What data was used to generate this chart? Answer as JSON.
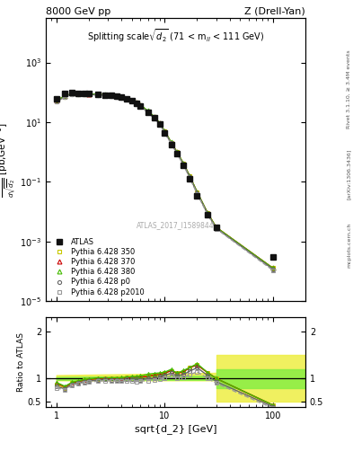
{
  "title_left": "8000 GeV pp",
  "title_right": "Z (Drell-Yan)",
  "panel_title": "Splitting scale $\\sqrt{\\overline{d_2}}$ (71 < m$_{ll}$ < 111 GeV)",
  "watermark": "ATLAS_2017_I1589844",
  "xlim": [
    0.8,
    200
  ],
  "ylim_main": [
    1e-05,
    30000.0
  ],
  "ylim_ratio": [
    0.39,
    2.3
  ],
  "atlas_x": [
    1.0,
    1.2,
    1.4,
    1.6,
    1.8,
    2.0,
    2.4,
    2.8,
    3.2,
    3.6,
    4.0,
    4.5,
    5.0,
    5.5,
    6.0,
    7.0,
    8.0,
    9.0,
    10.0,
    11.5,
    13.0,
    15.0,
    17.0,
    20.0,
    25.0,
    30.0,
    100.0
  ],
  "atlas_y": [
    60,
    90,
    100,
    95,
    92,
    90,
    85,
    82,
    78,
    74,
    68,
    60,
    52,
    44,
    36,
    22,
    14,
    8.5,
    4.5,
    1.8,
    0.9,
    0.35,
    0.13,
    0.035,
    0.008,
    0.003,
    0.0003
  ],
  "py350_x": [
    1.0,
    1.2,
    1.4,
    1.6,
    1.8,
    2.0,
    2.4,
    2.8,
    3.2,
    3.6,
    4.0,
    4.5,
    5.0,
    5.5,
    6.0,
    7.0,
    8.0,
    9.0,
    10.0,
    11.5,
    13.0,
    15.0,
    17.0,
    20.0,
    25.0,
    30.0,
    100.0
  ],
  "py350_y": [
    52,
    72,
    90,
    88,
    88,
    87,
    84,
    82,
    78,
    74,
    68,
    61,
    53,
    45,
    37,
    23,
    15,
    9.2,
    5.0,
    2.1,
    1.0,
    0.4,
    0.16,
    0.045,
    0.009,
    0.003,
    0.00013
  ],
  "py370_x": [
    1.0,
    1.2,
    1.4,
    1.6,
    1.8,
    2.0,
    2.4,
    2.8,
    3.2,
    3.6,
    4.0,
    4.5,
    5.0,
    5.5,
    6.0,
    7.0,
    8.0,
    9.0,
    10.0,
    11.5,
    13.0,
    15.0,
    17.0,
    20.0,
    25.0,
    30.0,
    100.0
  ],
  "py370_y": [
    54,
    74,
    91,
    89,
    89,
    88,
    85,
    82,
    78,
    74,
    68,
    61,
    53,
    45,
    37,
    23,
    15,
    9.2,
    5.0,
    2.1,
    1.0,
    0.4,
    0.16,
    0.045,
    0.009,
    0.003,
    0.00013
  ],
  "py380_x": [
    1.0,
    1.2,
    1.4,
    1.6,
    1.8,
    2.0,
    2.4,
    2.8,
    3.2,
    3.6,
    4.0,
    4.5,
    5.0,
    5.5,
    6.0,
    7.0,
    8.0,
    9.0,
    10.0,
    11.5,
    13.0,
    15.0,
    17.0,
    20.0,
    25.0,
    30.0,
    100.0
  ],
  "py380_y": [
    55,
    75,
    92,
    90,
    90,
    89,
    86,
    83,
    79,
    75,
    69,
    62,
    54,
    46,
    38,
    24,
    15.5,
    9.5,
    5.1,
    2.15,
    1.0,
    0.41,
    0.16,
    0.046,
    0.009,
    0.003,
    0.00013
  ],
  "pyp0_x": [
    1.0,
    1.2,
    1.4,
    1.6,
    1.8,
    2.0,
    2.4,
    2.8,
    3.2,
    3.6,
    4.0,
    4.5,
    5.0,
    5.5,
    6.0,
    7.0,
    8.0,
    9.0,
    10.0,
    11.5,
    13.0,
    15.0,
    17.0,
    20.0,
    25.0,
    30.0,
    100.0
  ],
  "pyp0_y": [
    50,
    70,
    88,
    86,
    86,
    85,
    82,
    80,
    76,
    72,
    66,
    59,
    51,
    43,
    35,
    22,
    14,
    8.8,
    4.8,
    2.0,
    0.95,
    0.38,
    0.15,
    0.043,
    0.0085,
    0.0028,
    0.00012
  ],
  "pyp2010_x": [
    1.0,
    1.2,
    1.4,
    1.6,
    1.8,
    2.0,
    2.4,
    2.8,
    3.2,
    3.6,
    4.0,
    4.5,
    5.0,
    5.5,
    6.0,
    7.0,
    8.0,
    9.0,
    10.0,
    11.5,
    13.0,
    15.0,
    17.0,
    20.0,
    25.0,
    30.0,
    100.0
  ],
  "pyp2010_y": [
    48,
    68,
    86,
    84,
    84,
    83,
    80,
    78,
    74,
    70,
    64,
    57,
    49,
    41,
    34,
    21,
    13.5,
    8.3,
    4.5,
    1.9,
    0.9,
    0.36,
    0.14,
    0.04,
    0.008,
    0.0027,
    0.00011
  ],
  "ratio_x": [
    1.0,
    1.2,
    1.4,
    1.6,
    1.8,
    2.0,
    2.4,
    2.8,
    3.2,
    3.6,
    4.0,
    4.5,
    5.0,
    5.5,
    6.0,
    7.0,
    8.0,
    9.0,
    10.0,
    11.5,
    13.0,
    15.0,
    17.0,
    20.0,
    25.0,
    30.0,
    100.0
  ],
  "ratio_py350_y": [
    0.87,
    0.8,
    0.9,
    0.926,
    0.957,
    0.967,
    0.988,
    1.0,
    1.0,
    1.0,
    1.0,
    1.017,
    1.019,
    1.023,
    1.028,
    1.045,
    1.071,
    1.082,
    1.111,
    1.167,
    1.111,
    1.143,
    1.231,
    1.286,
    1.125,
    1.0,
    0.433
  ],
  "ratio_py370_y": [
    0.9,
    0.822,
    0.91,
    0.937,
    0.967,
    0.978,
    1.0,
    1.0,
    1.0,
    1.0,
    1.0,
    1.017,
    1.019,
    1.023,
    1.028,
    1.045,
    1.071,
    1.082,
    1.111,
    1.167,
    1.111,
    1.143,
    1.231,
    1.286,
    1.125,
    1.0,
    0.433
  ],
  "ratio_py380_y": [
    0.917,
    0.833,
    0.92,
    0.947,
    0.978,
    0.989,
    1.012,
    1.012,
    1.013,
    1.014,
    1.015,
    1.033,
    1.038,
    1.045,
    1.056,
    1.091,
    1.107,
    1.118,
    1.133,
    1.194,
    1.111,
    1.171,
    1.231,
    1.314,
    1.125,
    1.0,
    0.433
  ],
  "ratio_pyp0_y": [
    0.833,
    0.778,
    0.88,
    0.905,
    0.935,
    0.944,
    0.965,
    0.976,
    0.974,
    0.973,
    0.971,
    0.983,
    0.981,
    0.977,
    0.972,
    1.0,
    1.0,
    1.035,
    1.067,
    1.111,
    1.056,
    1.086,
    1.154,
    1.229,
    1.063,
    0.933,
    0.4
  ],
  "ratio_pyp2010_y": [
    0.8,
    0.756,
    0.86,
    0.884,
    0.913,
    0.922,
    0.941,
    0.951,
    0.949,
    0.946,
    0.941,
    0.95,
    0.942,
    0.932,
    0.944,
    0.955,
    0.964,
    0.976,
    1.0,
    1.056,
    1.0,
    1.029,
    1.077,
    1.143,
    1.0,
    0.9,
    0.367
  ],
  "color_py350": "#c8c800",
  "color_py370": "#cc0000",
  "color_py380": "#44bb00",
  "color_pyp0": "#666666",
  "color_pyp2010": "#999999",
  "color_atlas": "#111111",
  "band_yellow_color": "#eeee44",
  "band_green_color": "#88ee44"
}
